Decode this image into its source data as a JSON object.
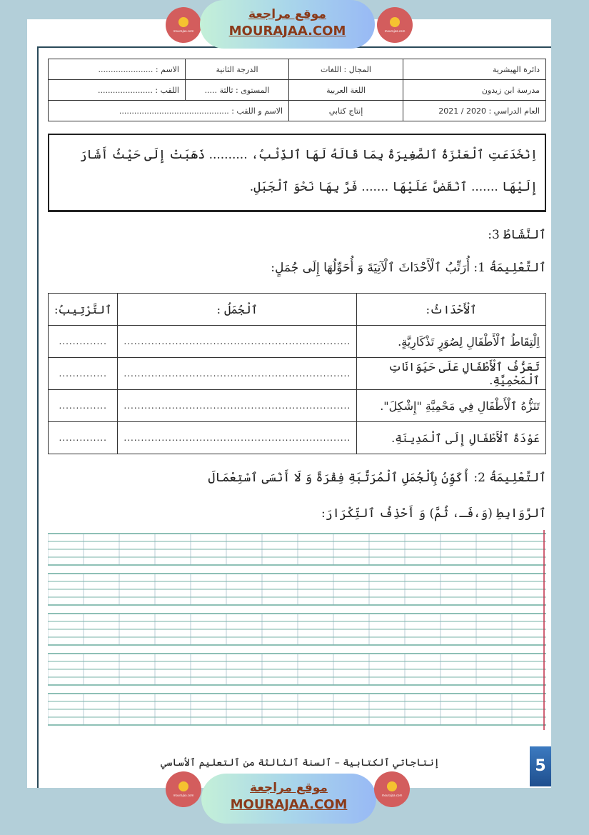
{
  "brand": {
    "arabic": "موقع مراجعة",
    "latin": "MOURAJAA.COM",
    "logo_text": "موقع مراجعة mourajaa.com"
  },
  "info_table": [
    [
      "دائرة الهيشرية",
      "المجال : اللغات",
      "الدرجة الثانية",
      "الاسم : ......................"
    ],
    [
      "مدرسة ابن زيدون",
      "اللغة العربية",
      "المستوى : ثالثة .....",
      "اللقب : ......................"
    ],
    [
      "العام الدراسي : 2020 / 2021",
      "إنتاج كتابي",
      "الاسم و اللقب : ............................................"
    ]
  ],
  "story": "اِنْخَدَعَتِ ٱلْعَنْزَةُ ٱلصَّغِيرَةُ بِمَا قَالَهُ لَهَا ٱلذِّئْبُ، .......... ذَهَبَتْ إِلَى حَيْثُ أَشَارَ إِلَيْهَا ....... ٱنْقَضَّ عَلَيْهَا ....... فَرَّ بِهَا نَحْوَ ٱلْجَبَلِ.",
  "activity": "ٱلنَّشَاطُ 3:",
  "instruction1": "ٱلتَّعْلِيمَةُ 1: أُرَتِّبُ ٱلْأَحْدَاثَ ٱلْآتِيَةَ وَ أُحَوِّلُهَا إِلَى جُمَلٍ:",
  "events_table": {
    "headers": [
      "ٱلْأَحْدَاثُ:",
      "ٱلْجُمَلُ :",
      "ٱلتَّرْتِيبُ:"
    ],
    "rows": [
      {
        "event": "اِلْتِقَاطُ ٱلْأَطْفَالِ لِصُوَرٍ تَذْكَارِيَّةٍ.",
        "sentence": "..................................................................",
        "order": ".............."
      },
      {
        "event": "تَعَرُّفُ ٱلْأَطْفَالِ عَلَى حَيَوَانَاتِ ٱلْمَحْمِيَّةِ.",
        "sentence": "..................................................................",
        "order": ".............."
      },
      {
        "event": "تَنَزُّهُ ٱلْأَطْفَالِ فِي مَحْمِيَّةِ \"إِشْكِلَ\".",
        "sentence": "..................................................................",
        "order": ".............."
      },
      {
        "event": "عَوْدَةُ ٱلْأَطْفَالِ إِلَى ٱلْمَدِينَةِ.",
        "sentence": "..................................................................",
        "order": ".............."
      }
    ]
  },
  "instruction2_line1": "ٱلتَّعْلِيمَةُ 2: أُكَوِّنُ بِٱلْجُمَلِ ٱلْمُرَتَّبَةِ فِقْرَةً وَ لَا أَنْسَى ٱسْتِعْمَالَ",
  "instruction2_line2": "ٱلرَّوَابِطِ (وَ،فَـ، ثُمَّ) وَ أَحْذِفُ ٱلتِّكْرَارَ:",
  "footer": "إنتاجاتي ٱلكتابية – ٱلسنة ٱلثالثة من ٱلتعليم ٱلأساسي",
  "page_number": "5",
  "colors": {
    "brand_text": "#8a3a1a",
    "logo": "#d35d5d",
    "background": "#b3cfd9",
    "writing_lines": "#4a9a8a",
    "margin_line": "#c0304a"
  }
}
